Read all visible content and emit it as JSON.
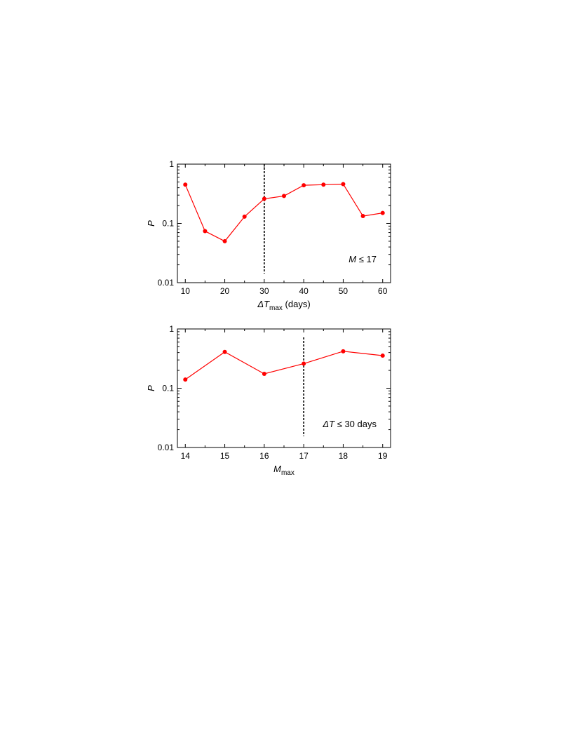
{
  "chart_data": [
    {
      "type": "line",
      "xlabel": {
        "symbol": "ΔT",
        "subscript": "max",
        "suffix": " (days)"
      },
      "ylabel": "P",
      "yscale": "log",
      "xlim": [
        8,
        62
      ],
      "ylim": [
        0.01,
        1
      ],
      "xticks": [
        10,
        20,
        30,
        40,
        50,
        60
      ],
      "xtick_labels": [
        "10",
        "20",
        "30",
        "40",
        "50",
        "60"
      ],
      "yticks": [
        0.01,
        0.1,
        1
      ],
      "ytick_labels": [
        "0.01",
        "0.1",
        "1"
      ],
      "grid": false,
      "series": [
        {
          "color": "#ff0000",
          "x": [
            10,
            15,
            20,
            25,
            30,
            35,
            40,
            45,
            50,
            55,
            60
          ],
          "y": [
            0.45,
            0.074,
            0.05,
            0.13,
            0.26,
            0.29,
            0.44,
            0.45,
            0.46,
            0.133,
            0.15
          ]
        }
      ],
      "reference_line": {
        "x": 30,
        "style": "dashed",
        "color": "#000000"
      },
      "annotation": {
        "symbol": "M",
        "relation": "≤",
        "value": "17"
      }
    },
    {
      "type": "line",
      "xlabel": {
        "symbol": "M",
        "subscript": "max",
        "suffix": ""
      },
      "ylabel": "P",
      "yscale": "log",
      "xlim": [
        13.8,
        19.2
      ],
      "ylim": [
        0.01,
        1
      ],
      "xticks": [
        14,
        15,
        16,
        17,
        18,
        19
      ],
      "xtick_labels": [
        "14",
        "15",
        "16",
        "17",
        "18",
        "19"
      ],
      "yticks": [
        0.01,
        0.1,
        1
      ],
      "ytick_labels": [
        "0.01",
        "0.1",
        "1"
      ],
      "grid": false,
      "series": [
        {
          "color": "#ff0000",
          "x": [
            14,
            15,
            16,
            17,
            18,
            19
          ],
          "y": [
            0.14,
            0.41,
            0.175,
            0.26,
            0.42,
            0.355
          ]
        }
      ],
      "reference_line": {
        "x": 17,
        "style": "dashed",
        "color": "#000000"
      },
      "annotation": {
        "symbol": "ΔT",
        "relation": "≤",
        "value": "30 days"
      }
    }
  ]
}
